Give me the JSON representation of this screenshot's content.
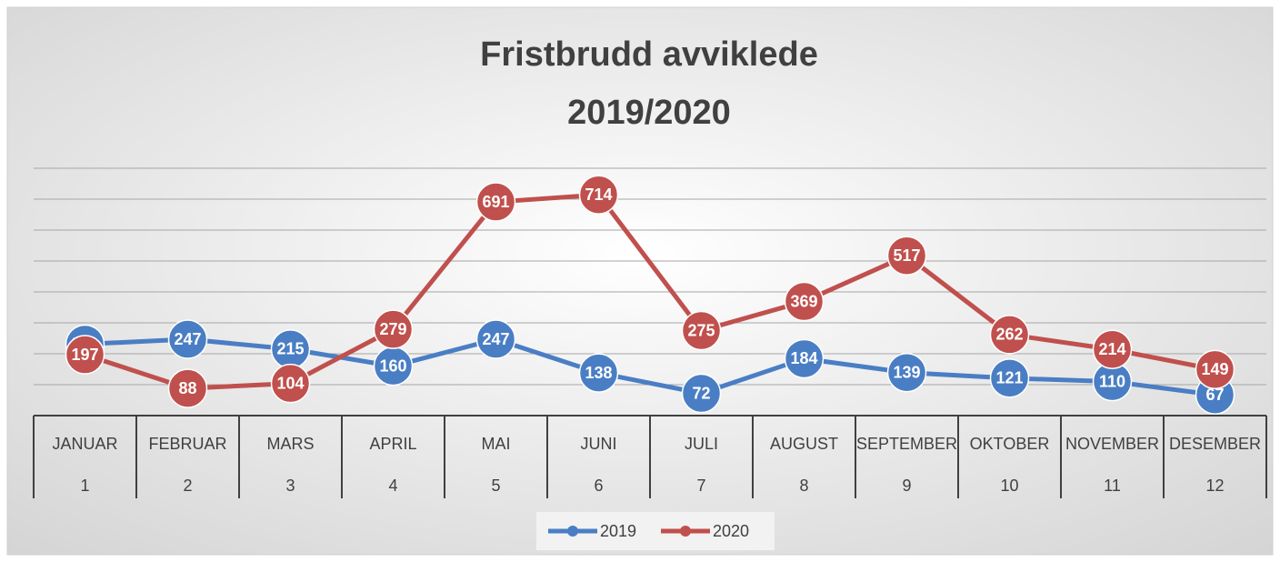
{
  "chart_data": {
    "type": "line",
    "title": [
      "Fristbrudd avviklede",
      "2019/2020"
    ],
    "categories": [
      "JANUAR",
      "FEBRUAR",
      "MARS",
      "APRIL",
      "MAI",
      "JUNI",
      "JULI",
      "AUGUST",
      "SEPTEMBER",
      "OKTOBER",
      "NOVEMBER",
      "DESEMBER"
    ],
    "category_numbers": [
      1,
      2,
      3,
      4,
      5,
      6,
      7,
      8,
      9,
      10,
      11,
      12
    ],
    "series": [
      {
        "name": "2019",
        "color": "#4a7ec4",
        "values": [
          231,
          247,
          215,
          160,
          247,
          138,
          72,
          184,
          139,
          121,
          110,
          67
        ]
      },
      {
        "name": "2020",
        "color": "#c0504d",
        "values": [
          197,
          88,
          104,
          279,
          691,
          714,
          275,
          369,
          517,
          262,
          214,
          149
        ]
      }
    ],
    "ylim": [
      0,
      800
    ],
    "yticks": [
      0,
      100,
      200,
      300,
      400,
      500,
      600,
      700,
      800
    ],
    "grid": true,
    "legend": "bottom"
  }
}
